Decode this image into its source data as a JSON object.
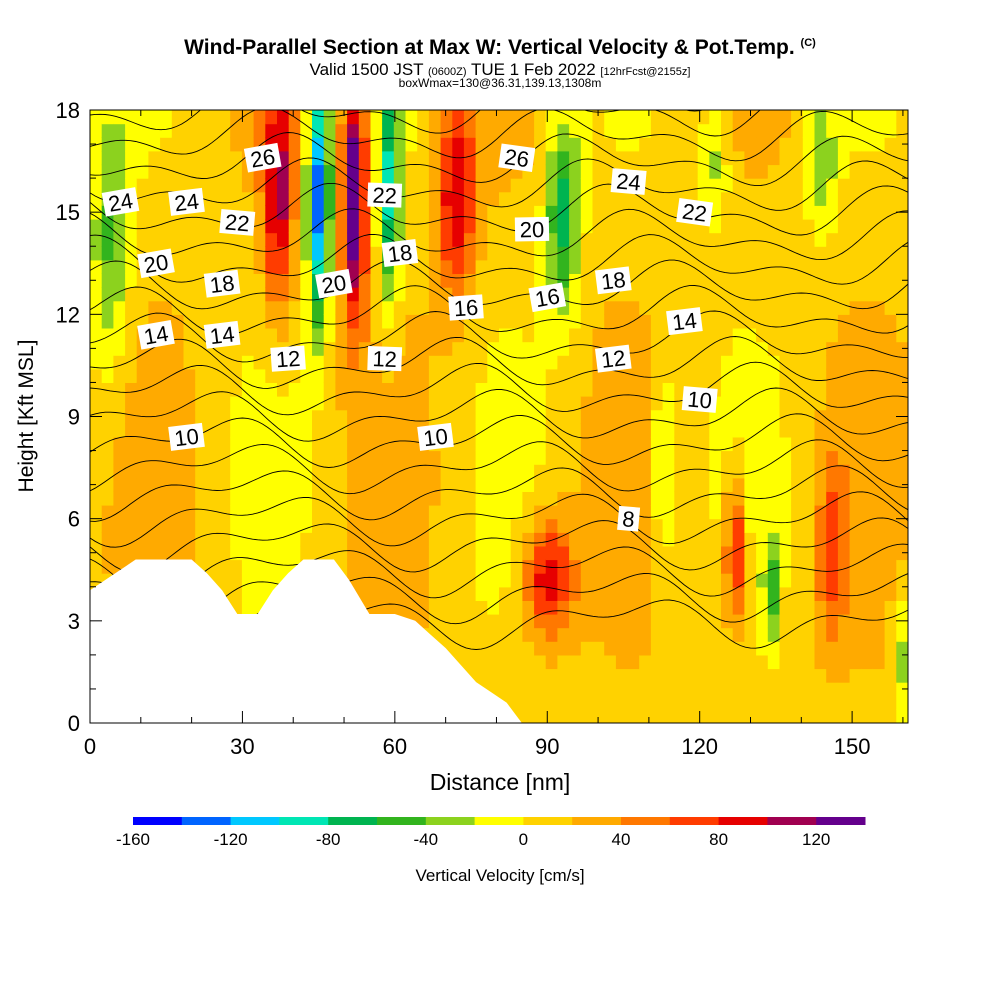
{
  "title": {
    "main": "Wind-Parallel Section at Max W: Vertical Velocity & Pot.Temp.",
    "copyright": "(C)",
    "valid_prefix": "Valid 1500 JST",
    "utc": "(0600Z)",
    "valid_date": "TUE 1 Feb 2022",
    "forecast": "[12hrFcst@2155z]",
    "box": "boxWmax=130@36.31,139.13,1308m"
  },
  "chart_data": {
    "type": "heatmap",
    "xlabel": "Distance [nm]",
    "ylabel": "Height [Kft MSL]",
    "xlim": [
      0,
      161
    ],
    "ylim": [
      0,
      18
    ],
    "x_ticks": [
      0,
      30,
      60,
      90,
      120,
      150
    ],
    "y_ticks": [
      0,
      3,
      6,
      9,
      12,
      15,
      18
    ],
    "colorbar": {
      "label": "Vertical Velocity [cm/s]",
      "min": -160,
      "max": 140,
      "step": 20,
      "ticks": [
        -160,
        -120,
        -80,
        -40,
        0,
        40,
        80,
        120
      ],
      "colors": [
        "#0000ff",
        "#0064ff",
        "#00c8ff",
        "#00e6b4",
        "#00b450",
        "#32b41e",
        "#8cd21e",
        "#ffff00",
        "#ffd200",
        "#ffaa00",
        "#ff7800",
        "#ff3c00",
        "#e60000",
        "#a00050",
        "#64008c"
      ]
    },
    "terrain": [
      [
        0,
        3.9
      ],
      [
        3,
        4.2
      ],
      [
        6,
        4.5
      ],
      [
        9,
        4.8
      ],
      [
        14,
        4.8
      ],
      [
        20,
        4.8
      ],
      [
        23,
        4.4
      ],
      [
        26,
        3.9
      ],
      [
        29,
        3.2
      ],
      [
        33,
        3.2
      ],
      [
        36,
        3.9
      ],
      [
        39,
        4.4
      ],
      [
        42,
        4.8
      ],
      [
        48,
        4.8
      ],
      [
        51,
        4.2
      ],
      [
        55,
        3.2
      ],
      [
        60,
        3.2
      ],
      [
        64,
        3.0
      ],
      [
        67,
        2.6
      ],
      [
        70,
        2.2
      ],
      [
        73,
        1.7
      ],
      [
        76,
        1.2
      ],
      [
        79,
        0.9
      ],
      [
        82,
        0.6
      ],
      [
        84,
        0.2
      ],
      [
        85,
        0.0
      ]
    ],
    "w_features": [
      {
        "x": 45,
        "y": 15.5,
        "sx": 2.2,
        "sy": 3.5,
        "value": -150
      },
      {
        "x": 52,
        "y": 15.5,
        "sx": 2.4,
        "sy": 3.5,
        "value": 150
      },
      {
        "x": 37,
        "y": 15.5,
        "sx": 3.0,
        "sy": 3.5,
        "value": 95
      },
      {
        "x": 59,
        "y": 15.5,
        "sx": 2.2,
        "sy": 3.5,
        "value": -95
      },
      {
        "x": 72,
        "y": 15.5,
        "sx": 4.0,
        "sy": 3.0,
        "value": 85
      },
      {
        "x": 93,
        "y": 15.0,
        "sx": 3.5,
        "sy": 3.0,
        "value": -80
      },
      {
        "x": 4,
        "y": 14.0,
        "sx": 4.0,
        "sy": 4.0,
        "value": -55
      },
      {
        "x": 90,
        "y": 4.3,
        "sx": 5.0,
        "sy": 1.8,
        "value": 90
      },
      {
        "x": 127,
        "y": 5.0,
        "sx": 2.0,
        "sy": 2.2,
        "value": 90
      },
      {
        "x": 134,
        "y": 4.0,
        "sx": 1.6,
        "sy": 1.6,
        "value": -55
      },
      {
        "x": 113,
        "y": 7.5,
        "sx": 3.0,
        "sy": 3.0,
        "value": -45
      },
      {
        "x": 146,
        "y": 5.0,
        "sx": 3.0,
        "sy": 2.5,
        "value": 55
      },
      {
        "x": 123,
        "y": 16.5,
        "sx": 3.0,
        "sy": 2.0,
        "value": -40
      },
      {
        "x": 144,
        "y": 16.5,
        "sx": 3.0,
        "sy": 2.0,
        "value": -45
      },
      {
        "x": 160,
        "y": 2.0,
        "sx": 2.0,
        "sy": 2.0,
        "value": -40
      }
    ],
    "theta_labels": [
      {
        "x": 34,
        "y": 16.6,
        "text": "26"
      },
      {
        "x": 84,
        "y": 16.6,
        "text": "26"
      },
      {
        "x": 6,
        "y": 15.3,
        "text": "24"
      },
      {
        "x": 19,
        "y": 15.3,
        "text": "24"
      },
      {
        "x": 106,
        "y": 15.9,
        "text": "24"
      },
      {
        "x": 29,
        "y": 14.7,
        "text": "22"
      },
      {
        "x": 58,
        "y": 15.5,
        "text": "22"
      },
      {
        "x": 119,
        "y": 15.0,
        "text": "22"
      },
      {
        "x": 13,
        "y": 13.5,
        "text": "20"
      },
      {
        "x": 48,
        "y": 12.9,
        "text": "20"
      },
      {
        "x": 87,
        "y": 14.5,
        "text": "20"
      },
      {
        "x": 26,
        "y": 12.9,
        "text": "18"
      },
      {
        "x": 61,
        "y": 13.8,
        "text": "18"
      },
      {
        "x": 103,
        "y": 13.0,
        "text": "18"
      },
      {
        "x": 74,
        "y": 12.2,
        "text": "16"
      },
      {
        "x": 90,
        "y": 12.5,
        "text": "16"
      },
      {
        "x": 13,
        "y": 11.4,
        "text": "14"
      },
      {
        "x": 26,
        "y": 11.4,
        "text": "14"
      },
      {
        "x": 117,
        "y": 11.8,
        "text": "14"
      },
      {
        "x": 39,
        "y": 10.7,
        "text": "12"
      },
      {
        "x": 58,
        "y": 10.7,
        "text": "12"
      },
      {
        "x": 103,
        "y": 10.7,
        "text": "12"
      },
      {
        "x": 19,
        "y": 8.4,
        "text": "10"
      },
      {
        "x": 68,
        "y": 8.4,
        "text": "10"
      },
      {
        "x": 120,
        "y": 9.5,
        "text": "10"
      },
      {
        "x": 106,
        "y": 6.0,
        "text": "8"
      }
    ]
  }
}
